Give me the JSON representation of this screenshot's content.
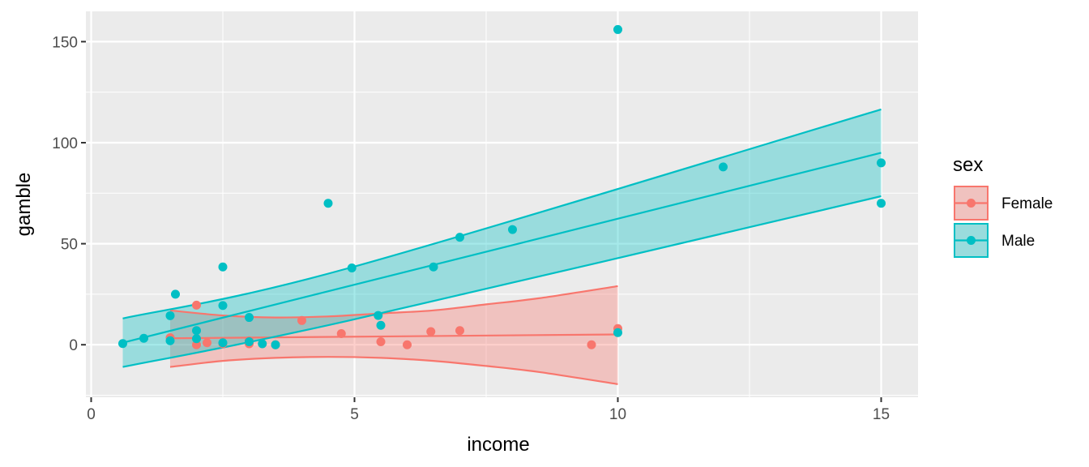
{
  "chart_data": {
    "type": "scatter",
    "xlabel": "income",
    "ylabel": "gamble",
    "xlim": [
      -0.1,
      15.7
    ],
    "ylim": [
      -26,
      165
    ],
    "x_ticks": [
      0,
      5,
      10,
      15
    ],
    "x_tick_labels": [
      "0",
      "5",
      "10",
      "15"
    ],
    "y_ticks": [
      0,
      50,
      100,
      150
    ],
    "y_tick_labels": [
      "0",
      "50",
      "100",
      "150"
    ],
    "background": "#ebebeb",
    "grid": true,
    "legend": {
      "title": "sex",
      "position": "right"
    },
    "series": [
      {
        "name": "Female",
        "color": "#f8766d",
        "points": [
          [
            1.5,
            3.5
          ],
          [
            2.0,
            0.0
          ],
          [
            2.0,
            19.6
          ],
          [
            2.2,
            1.0
          ],
          [
            2.5,
            0.5
          ],
          [
            3.0,
            0.5
          ],
          [
            3.0,
            2.0
          ],
          [
            3.5,
            0.0
          ],
          [
            4.0,
            12.0
          ],
          [
            4.75,
            5.5
          ],
          [
            5.5,
            1.5
          ],
          [
            6.0,
            0.0
          ],
          [
            6.45,
            6.5
          ],
          [
            7.0,
            7.0
          ],
          [
            9.5,
            0.0
          ],
          [
            10.0,
            8.0
          ]
        ],
        "fit": {
          "x": [
            1.5,
            10.0
          ],
          "y": [
            3.2,
            5.1
          ]
        },
        "band_upper": [
          [
            1.5,
            17.0
          ],
          [
            2.5,
            14.5
          ],
          [
            3.5,
            13.5
          ],
          [
            4.5,
            14.0
          ],
          [
            5.5,
            15.5
          ],
          [
            6.5,
            17.0
          ],
          [
            7.5,
            20.0
          ],
          [
            8.5,
            23.0
          ],
          [
            10.0,
            29.0
          ]
        ],
        "band_lower": [
          [
            1.5,
            -11.0
          ],
          [
            2.5,
            -8.0
          ],
          [
            3.5,
            -6.5
          ],
          [
            4.5,
            -6.0
          ],
          [
            5.5,
            -6.5
          ],
          [
            6.5,
            -8.0
          ],
          [
            7.5,
            -10.5
          ],
          [
            8.5,
            -13.5
          ],
          [
            10.0,
            -19.5
          ]
        ]
      },
      {
        "name": "Male",
        "color": "#00bfc4",
        "points": [
          [
            0.6,
            0.6
          ],
          [
            1.0,
            3.2
          ],
          [
            1.5,
            2.0
          ],
          [
            1.5,
            14.4
          ],
          [
            1.6,
            25.0
          ],
          [
            2.0,
            3.0
          ],
          [
            2.0,
            7.0
          ],
          [
            2.5,
            1.0
          ],
          [
            2.5,
            19.4
          ],
          [
            2.5,
            38.5
          ],
          [
            3.0,
            1.5
          ],
          [
            3.0,
            13.5
          ],
          [
            3.25,
            0.5
          ],
          [
            3.5,
            0.0
          ],
          [
            4.5,
            70.0
          ],
          [
            4.95,
            38.0
          ],
          [
            5.45,
            14.5
          ],
          [
            5.5,
            9.6
          ],
          [
            6.5,
            38.5
          ],
          [
            7.0,
            53.2
          ],
          [
            8.0,
            57.0
          ],
          [
            10.0,
            6.0
          ],
          [
            10.0,
            156.0
          ],
          [
            12.0,
            88.0
          ],
          [
            15.0,
            70.0
          ],
          [
            15.0,
            90.0
          ]
        ],
        "fit": {
          "x": [
            0.6,
            15.0
          ],
          "y": [
            1.0,
            95.0
          ]
        },
        "band_upper": [
          [
            0.6,
            13.0
          ],
          [
            4.9,
            38.0
          ],
          [
            15.0,
            116.5
          ]
        ],
        "band_lower": [
          [
            0.6,
            -11.0
          ],
          [
            4.9,
            12.0
          ],
          [
            15.0,
            73.5
          ]
        ]
      }
    ]
  }
}
